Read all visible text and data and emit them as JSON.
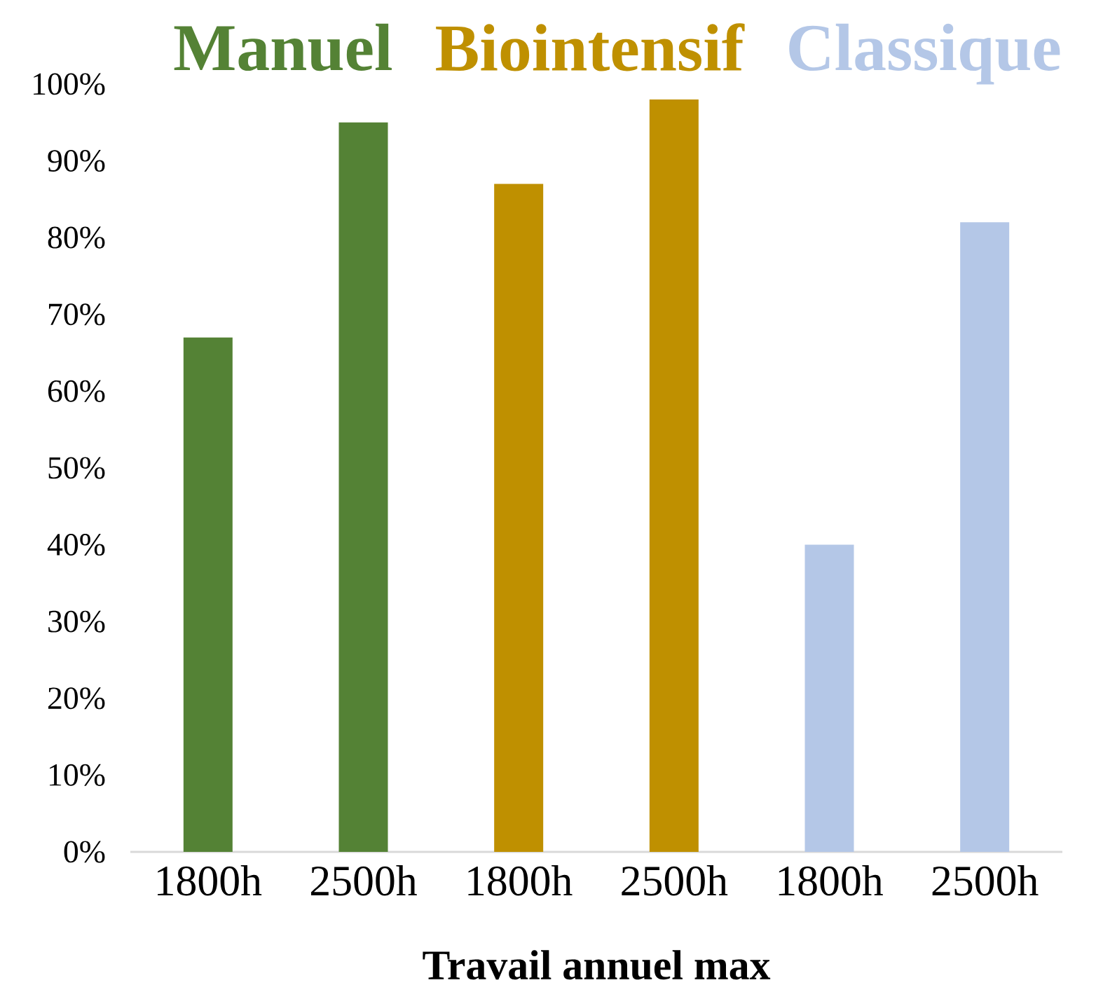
{
  "chart_data": {
    "type": "bar",
    "xlabel": "Travail annuel max",
    "categories": [
      "1800h",
      "2500h",
      "1800h",
      "2500h",
      "1800h",
      "2500h"
    ],
    "series": [
      {
        "name": "Manuel",
        "color": "#548235",
        "values": [
          67,
          95,
          null,
          null,
          null,
          null
        ]
      },
      {
        "name": "Biointensif",
        "color": "#bf9000",
        "values": [
          null,
          null,
          87,
          98,
          null,
          null
        ]
      },
      {
        "name": "Classique",
        "color": "#b4c7e7",
        "values": [
          null,
          null,
          null,
          null,
          40,
          82
        ]
      }
    ],
    "ylim": [
      0,
      100
    ],
    "yticks": [
      {
        "value": 0,
        "label": "0%"
      },
      {
        "value": 10,
        "label": "10%"
      },
      {
        "value": 20,
        "label": "20%"
      },
      {
        "value": 30,
        "label": "30%"
      },
      {
        "value": 40,
        "label": "40%"
      },
      {
        "value": 50,
        "label": "50%"
      },
      {
        "value": 60,
        "label": "60%"
      },
      {
        "value": 70,
        "label": "70%"
      },
      {
        "value": 80,
        "label": "80%"
      },
      {
        "value": 90,
        "label": "90%"
      },
      {
        "value": 100,
        "label": "100%"
      }
    ],
    "legend": "top"
  }
}
